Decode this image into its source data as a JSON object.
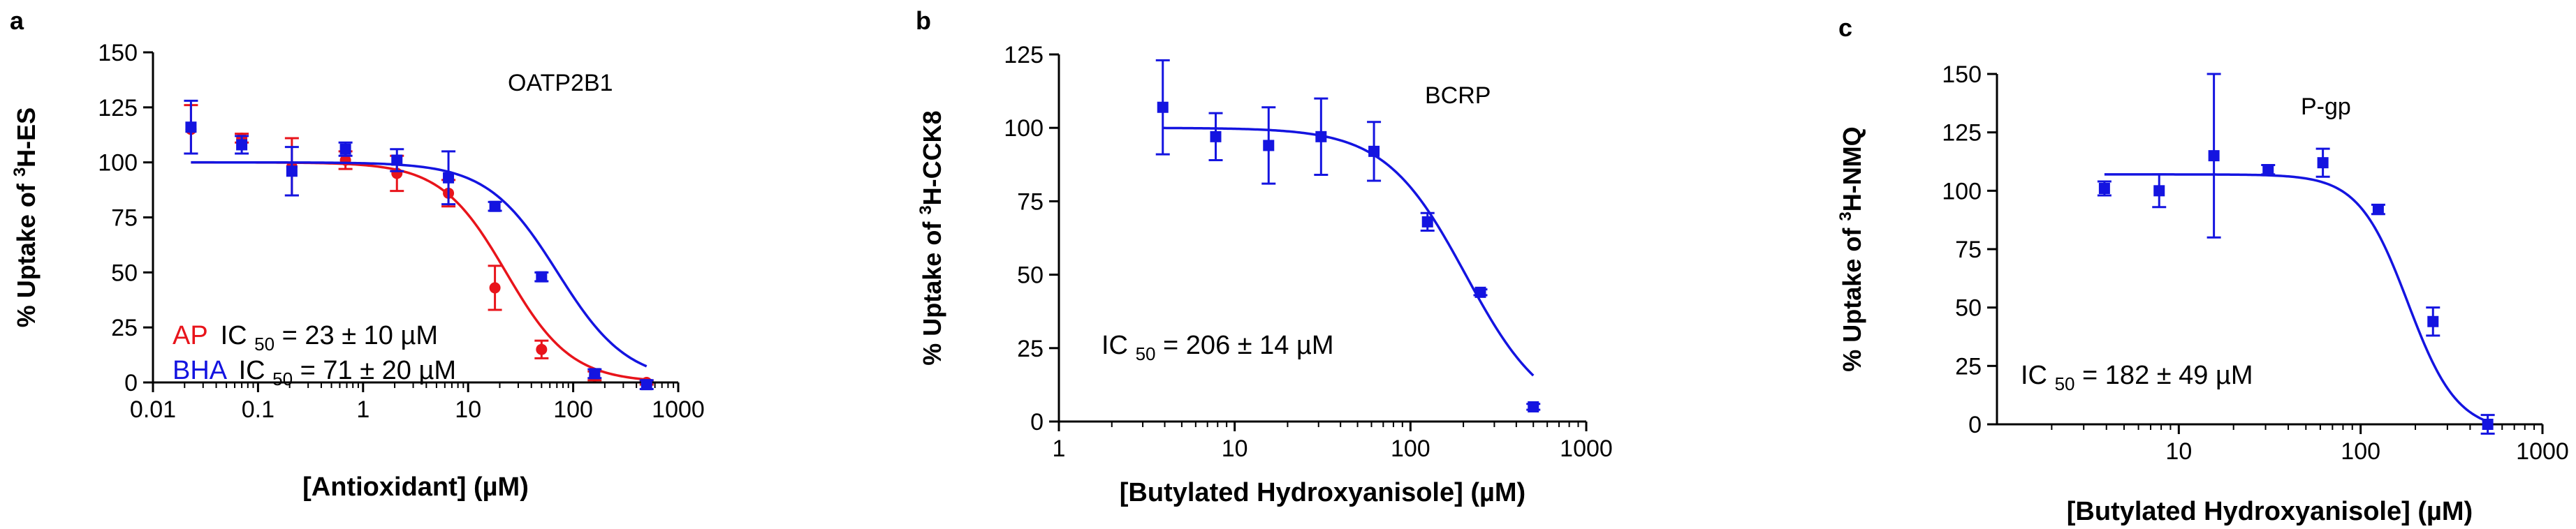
{
  "colors": {
    "ap": "#e8141b",
    "bha": "#1414e0",
    "axis": "#000000",
    "text": "#000000"
  },
  "panels": [
    {
      "letter": "a",
      "annotation": "OATP2B1",
      "ic50_lines": [
        {
          "label": "AP",
          "label_color": "#e8141b",
          "ic": "IC",
          "sub": "50",
          "value": " = 23 ± 10 µM"
        },
        {
          "label": "BHA",
          "label_color": "#1414e0",
          "ic": "IC",
          "sub": "50",
          "value": " = 71 ± 20 µM"
        }
      ]
    },
    {
      "letter": "b",
      "annotation": "BCRP",
      "ic50_lines": [
        {
          "label": "",
          "label_color": "#000000",
          "ic": "IC",
          "sub": "50",
          "value": " = 206 ± 14 µM"
        }
      ]
    },
    {
      "letter": "c",
      "annotation": "P-gp",
      "ic50_lines": [
        {
          "label": "",
          "label_color": "#000000",
          "ic": "IC",
          "sub": "50",
          "value": " = 182 ± 49 µM"
        }
      ]
    }
  ],
  "chart_data": [
    {
      "type": "scatter",
      "title": "OATP2B1",
      "xlabel": "[Antioxidant] (µM)",
      "ylabel_parts": [
        "% Uptake of ",
        "3",
        "H-ES"
      ],
      "xscale": "log",
      "xlim": [
        0.01,
        1000
      ],
      "ylim": [
        0,
        150
      ],
      "xticks": [
        0.01,
        0.1,
        1,
        10,
        100,
        1000
      ],
      "xtick_labels": [
        "0.01",
        "0.1",
        "1",
        "10",
        "100",
        "1000"
      ],
      "yticks": [
        0,
        25,
        50,
        75,
        100,
        125,
        150
      ],
      "ytick_labels": [
        "0",
        "25",
        "50",
        "75",
        "100",
        "125",
        "150"
      ],
      "legend": "bottom-left",
      "series": [
        {
          "name": "AP",
          "color": "#e8141b",
          "marker": "circle",
          "x": [
            0.023,
            0.07,
            0.21,
            0.68,
            2.1,
            6.5,
            18,
            50,
            160,
            500
          ],
          "y": [
            115,
            111,
            98,
            101,
            95,
            86,
            43,
            15,
            3,
            0
          ],
          "err": [
            11,
            2,
            13,
            4,
            8,
            6,
            10,
            4,
            2,
            1
          ],
          "fit": {
            "top": 100,
            "bottom": 0,
            "ic50": 23,
            "hill": 1.4
          }
        },
        {
          "name": "BHA",
          "color": "#1414e0",
          "marker": "square",
          "x": [
            0.023,
            0.07,
            0.21,
            0.68,
            2.1,
            6.5,
            18,
            50,
            160,
            500
          ],
          "y": [
            116,
            108,
            96,
            106,
            101,
            93,
            80,
            48,
            4,
            -1
          ],
          "err": [
            12,
            4,
            11,
            3,
            5,
            12,
            2,
            2,
            2,
            2
          ],
          "fit": {
            "top": 100,
            "bottom": 0,
            "ic50": 71,
            "hill": 1.3
          }
        }
      ]
    },
    {
      "type": "scatter",
      "title": "BCRP",
      "xlabel": "[Butylated Hydroxyanisole] (µM)",
      "ylabel_parts": [
        "% Uptake of ",
        "3",
        "H-CCK8"
      ],
      "xscale": "log",
      "xlim": [
        1,
        1000
      ],
      "ylim": [
        0,
        125
      ],
      "xticks": [
        1,
        10,
        100,
        1000
      ],
      "xtick_labels": [
        "1",
        "10",
        "100",
        "1000"
      ],
      "yticks": [
        0,
        25,
        50,
        75,
        100,
        125
      ],
      "ytick_labels": [
        "0",
        "25",
        "50",
        "75",
        "100",
        "125"
      ],
      "series": [
        {
          "name": "BHA",
          "color": "#1414e0",
          "marker": "square",
          "x": [
            3.9,
            7.8,
            15.6,
            31,
            62,
            125,
            250,
            500
          ],
          "y": [
            107,
            97,
            94,
            97,
            92,
            68,
            44,
            5
          ],
          "err": [
            16,
            8,
            13,
            13,
            10,
            3,
            1,
            1
          ],
          "fit": {
            "top": 100,
            "bottom": 0,
            "ic50": 206,
            "hill": 1.9,
            "xmin": 3.9,
            "xmax": 500
          }
        }
      ]
    },
    {
      "type": "scatter",
      "title": "P-gp",
      "xlabel": "[Butylated Hydroxyanisole] (µM)",
      "ylabel_parts": [
        "% Uptake of ",
        "3",
        "H-NMQ"
      ],
      "xscale": "log",
      "xlim": [
        1,
        1000
      ],
      "ylim": [
        0,
        150
      ],
      "xticks": [
        10,
        100,
        1000
      ],
      "xtick_labels": [
        "10",
        "100",
        "1000"
      ],
      "yticks": [
        0,
        25,
        50,
        75,
        100,
        125,
        150
      ],
      "ytick_labels": [
        "0",
        "25",
        "50",
        "75",
        "100",
        "125",
        "150"
      ],
      "series": [
        {
          "name": "BHA",
          "color": "#1414e0",
          "marker": "square",
          "x": [
            3.9,
            7.8,
            15.6,
            31,
            62,
            125,
            250,
            500
          ],
          "y": [
            101,
            100,
            115,
            109,
            112,
            92,
            44,
            0
          ],
          "err": [
            3,
            7,
            35,
            2,
            6,
            2,
            6,
            4
          ],
          "fit": {
            "top": 107,
            "bottom": -3,
            "ic50": 182,
            "hill": 3.2,
            "xmin": 3.9,
            "xmax": 500
          }
        }
      ]
    }
  ]
}
